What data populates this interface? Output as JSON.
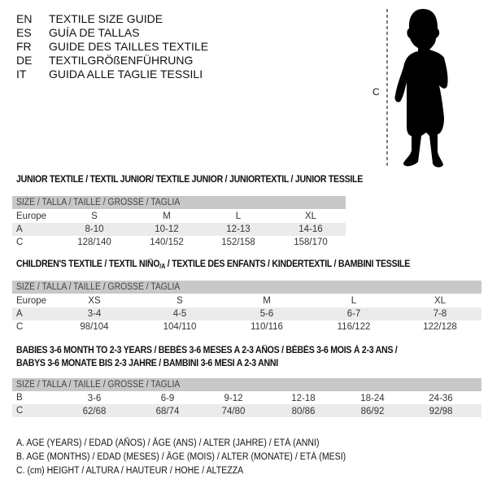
{
  "languages": [
    {
      "code": "EN",
      "title": "TEXTILE SIZE GUIDE"
    },
    {
      "code": "ES",
      "title": "GUÍA DE TALLAS"
    },
    {
      "code": "FR",
      "title": "GUIDE DES TAILLES TEXTILE"
    },
    {
      "code": "DE",
      "title": "TEXTILGRÖßENFÜHRUNG"
    },
    {
      "code": "IT",
      "title": "GUIDA ALLE TAGLIE TESSILI"
    }
  ],
  "figure": {
    "label": "C",
    "icon": "baby-silhouette"
  },
  "size_header": "SIZE / TALLA / TAILLE / GRÖSSE / TAGLIA",
  "junior": {
    "title": "JUNIOR TEXTILE / TEXTIL JUNIOR/ TEXTILE JUNIOR / JUNIORTEXTIL / JUNIOR TESSILE",
    "rows": [
      {
        "label": "Europe",
        "values": [
          "S",
          "M",
          "L",
          "XL"
        ]
      },
      {
        "label": "A",
        "values": [
          "8-10",
          "10-12",
          "12-13",
          "14-16"
        ]
      },
      {
        "label": "C",
        "values": [
          "128/140",
          "140/152",
          "152/158",
          "158/170"
        ]
      }
    ]
  },
  "children": {
    "title_a": "CHILDREN'S TEXTILE / TEXTIL NIÑO",
    "title_sub": "/A",
    "title_b": " / TEXTILE DES ENFANTS / KINDERTEXTIL / BAMBINI TESSILE",
    "rows": [
      {
        "label": "Europe",
        "values": [
          "XS",
          "S",
          "M",
          "L",
          "XL"
        ]
      },
      {
        "label": "A",
        "values": [
          "3-4",
          "4-5",
          "5-6",
          "6-7",
          "7-8"
        ]
      },
      {
        "label": "C",
        "values": [
          "98/104",
          "104/110",
          "110/116",
          "116/122",
          "122/128"
        ]
      }
    ]
  },
  "babies": {
    "title_line1": "BABIES 3-6 MONTH TO 2-3 YEARS / BEBÉS 3-6 MESES A 2-3 AÑOS / BÉBÉS 3-6 MOIS À 2-3 ANS /",
    "title_line2": "BABYS 3-6 MONATE BIS 2-3 JAHRE / BAMBINI 3-6 MESI A 2-3 ANNI",
    "rows": [
      {
        "label": "B",
        "values": [
          "3-6",
          "6-9",
          "9-12",
          "12-18",
          "18-24",
          "24-36"
        ]
      },
      {
        "label": "C",
        "values": [
          "62/68",
          "68/74",
          "74/80",
          "80/86",
          "86/92",
          "92/98"
        ]
      }
    ]
  },
  "notes": [
    "A. AGE (YEARS) / EDAD (AÑOS) / ÂGE (ANS) / ALTER (JAHRE) / ETÀ (ANNI)",
    "B. AGE (MONTHS) / EDAD (MESES) / ÂGE (MOIS) / ALTER (MONATE) / ETÀ (MESI)",
    "C. (cm) HEIGHT / ALTURA / HAUTEUR / HÖHE / ALTEZZA"
  ],
  "colors": {
    "header_bar": "#c8c8c8",
    "stripe": "#ebebeb"
  }
}
